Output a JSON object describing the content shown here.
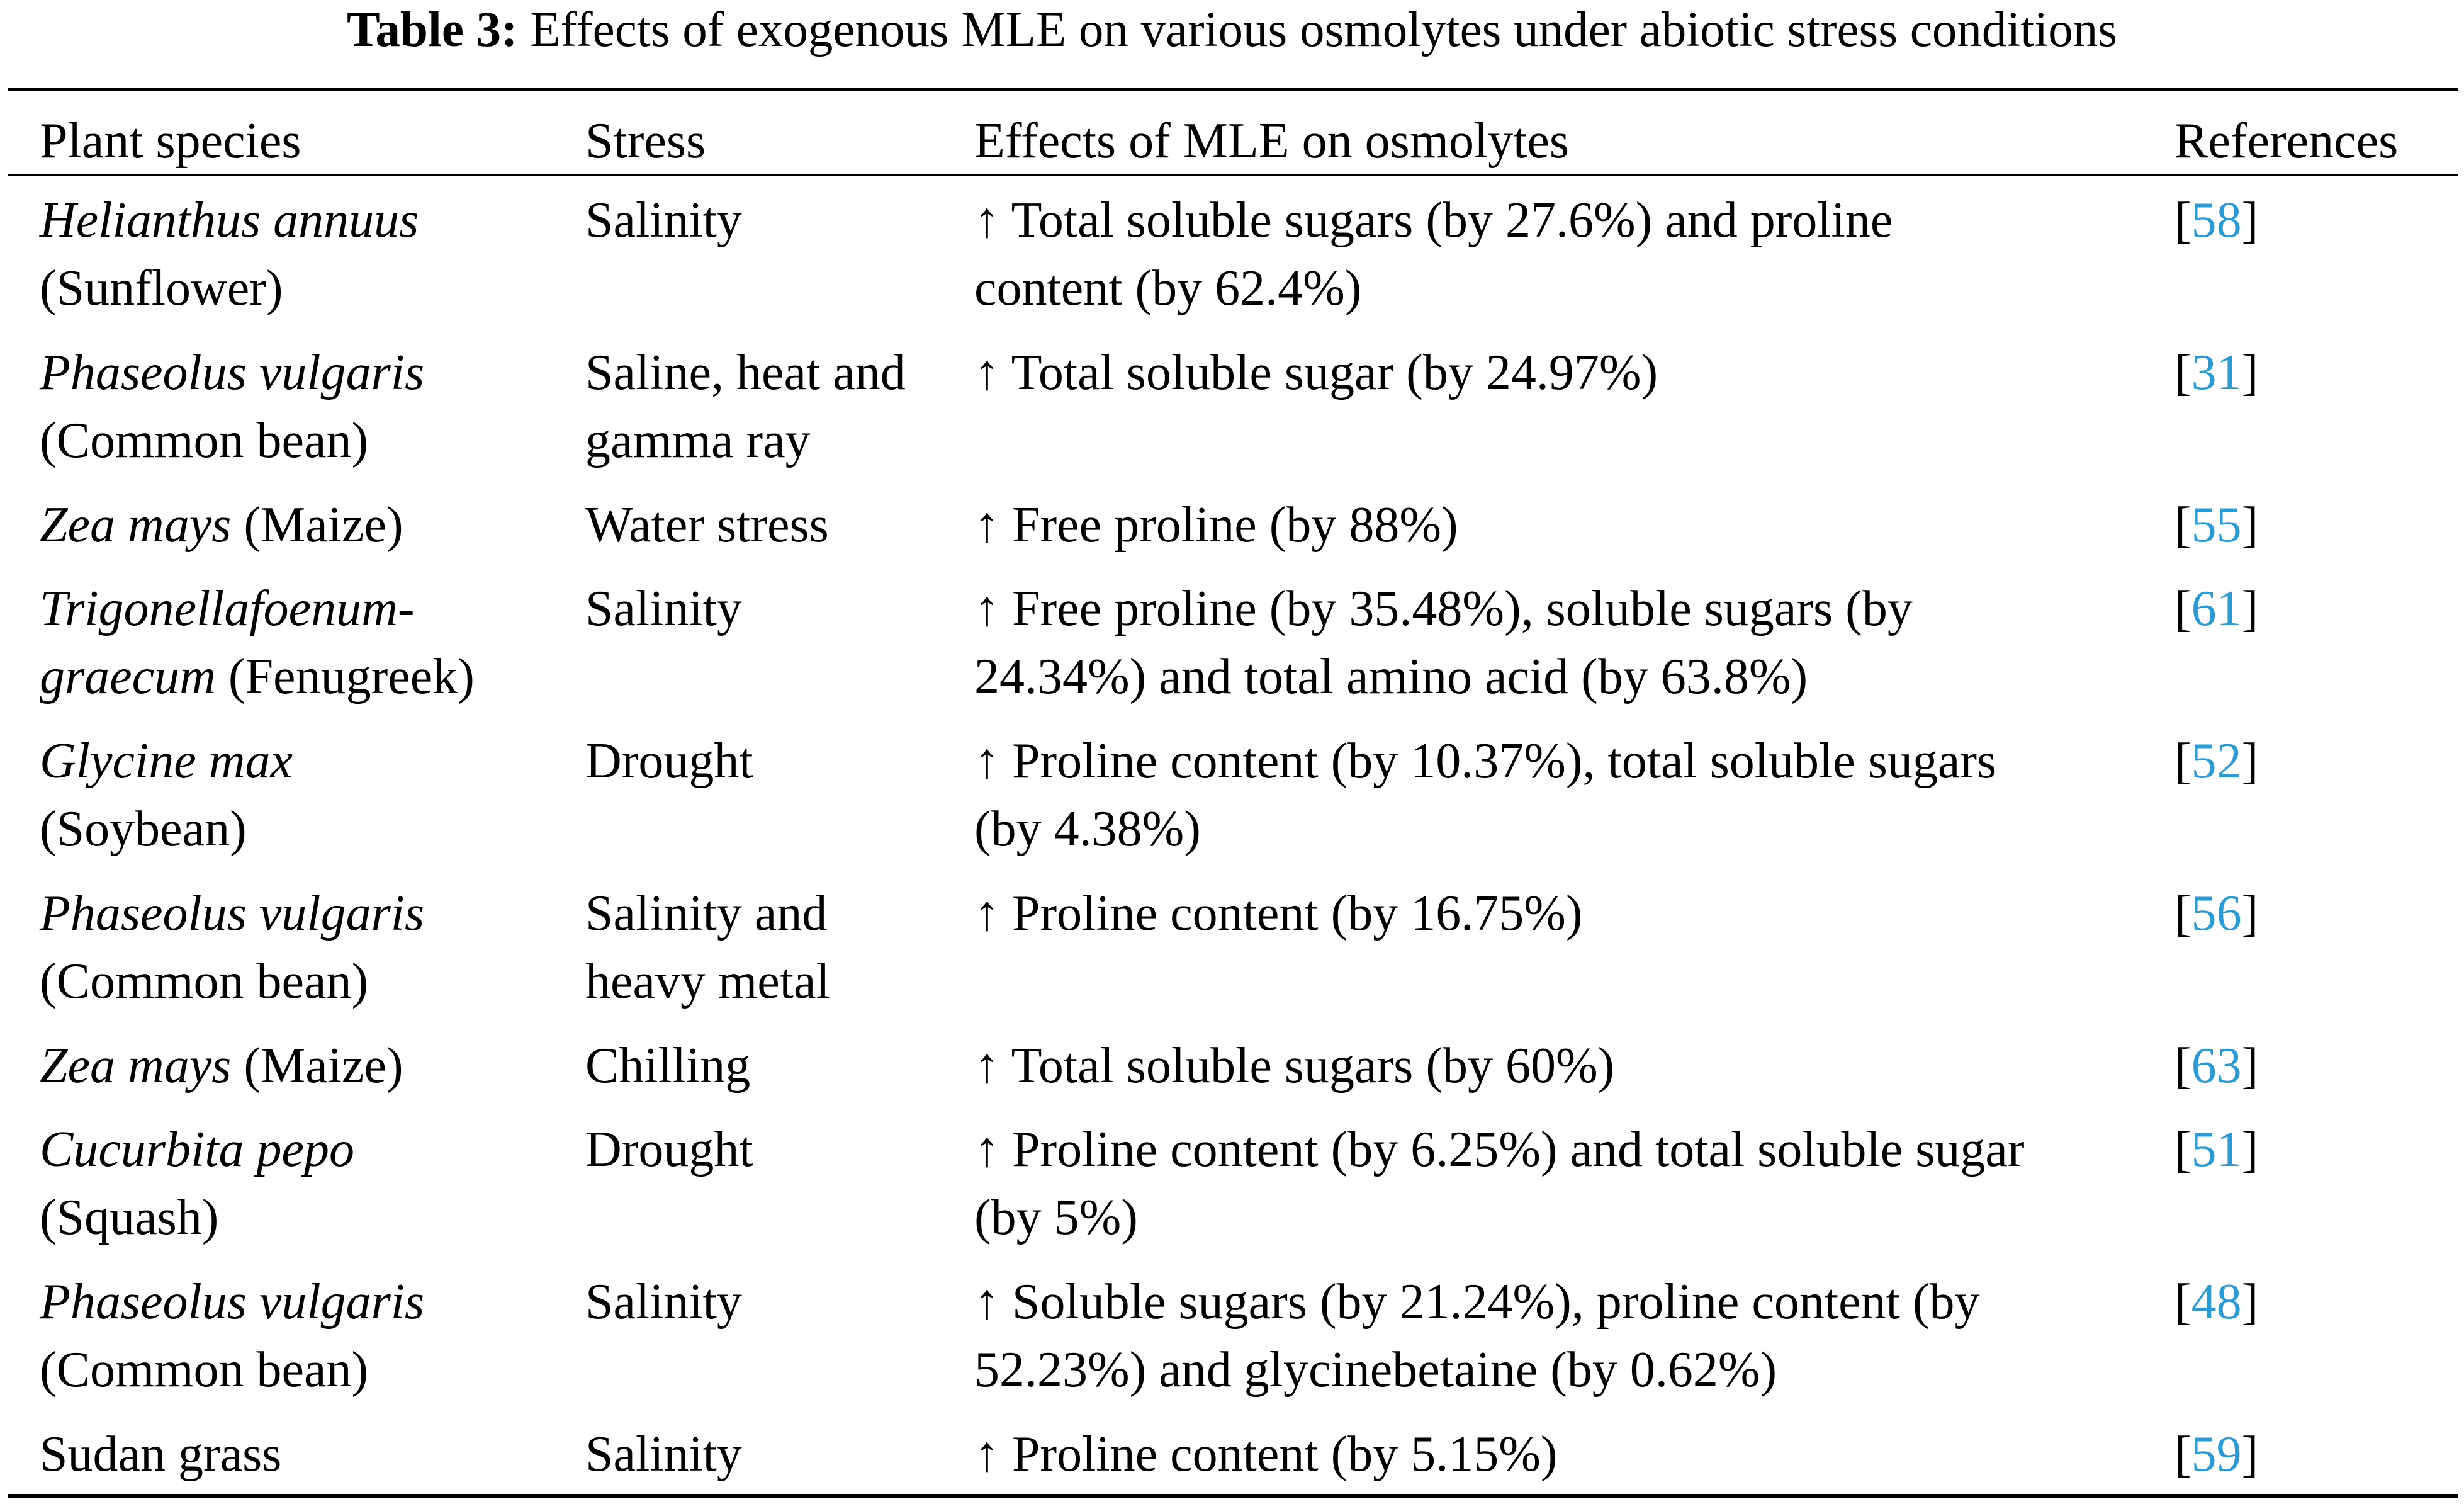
{
  "table": {
    "caption_label": "Table 3:",
    "caption_text": "Effects of exogenous MLE on various osmolytes under abiotic stress conditions",
    "headers": {
      "species": "Plant species",
      "stress": "Stress",
      "effects": "Effects of MLE on osmolytes",
      "references": "References"
    },
    "arrow_symbol": "↑",
    "rows": [
      {
        "species_line1_italic": "Helianthus annuus",
        "species_line2": "(Sunflower)",
        "stress_line1": "Salinity",
        "effect_line1": "Total soluble sugars (by 27.6%) and proline",
        "effect_line2": "content (by 62.4%)",
        "ref_open": "[",
        "ref": "58",
        "ref_close": "]"
      },
      {
        "species_line1_italic": "Phaseolus vulgaris",
        "species_line2": "(Common bean)",
        "stress_line1": "Saline, heat and",
        "stress_line2": "gamma ray",
        "effect_line1": "Total soluble sugar (by 24.97%)",
        "ref_open": "[",
        "ref": "31",
        "ref_close": "]"
      },
      {
        "species_line1_italic": "Zea mays",
        "species_line1_rest": " (Maize)",
        "stress_line1": "Water stress",
        "effect_line1": "Free proline (by 88%)",
        "ref_open": "[",
        "ref": "55",
        "ref_close": "]"
      },
      {
        "species_line1_italic": "Trigonellafoenum-",
        "species_line2_italic": "graecum",
        "species_line2_rest": " (Fenugreek)",
        "stress_line1": "Salinity",
        "effect_line1": "Free proline (by 35.48%), soluble sugars (by",
        "effect_line2": "24.34%) and total amino acid (by 63.8%)",
        "ref_open": "[",
        "ref": "61",
        "ref_close": "]"
      },
      {
        "species_line1_italic": "Glycine max",
        "species_line2": "(Soybean)",
        "stress_line1": "Drought",
        "effect_line1": "Proline content (by 10.37%), total soluble sugars",
        "effect_line2": "(by 4.38%)",
        "ref_open": "[",
        "ref": "52",
        "ref_close": "]"
      },
      {
        "species_line1_italic": "Phaseolus vulgaris",
        "species_line2": "(Common bean)",
        "stress_line1": "Salinity and",
        "stress_line2": "heavy metal",
        "effect_line1": "Proline content (by 16.75%)",
        "ref_open": "[",
        "ref": "56",
        "ref_close": "]"
      },
      {
        "species_line1_italic": "Zea mays",
        "species_line1_rest": " (Maize)",
        "stress_line1": "Chilling",
        "effect_line1": "Total soluble sugars (by 60%)",
        "ref_open": "[",
        "ref": "63",
        "ref_close": "]"
      },
      {
        "species_line1_italic": "Cucurbita pepo",
        "species_line2": "(Squash)",
        "stress_line1": "Drought",
        "effect_line1": "Proline content (by 6.25%) and total soluble sugar",
        "effect_line2": "(by 5%)",
        "ref_open": "[",
        "ref": "51",
        "ref_close": "]"
      },
      {
        "species_line1_italic": "Phaseolus vulgaris",
        "species_line2": "(Common bean)",
        "stress_line1": "Salinity",
        "effect_line1": "Soluble sugars (by 21.24%), proline content (by",
        "effect_line2": "52.23%) and glycinebetaine (by 0.62%)",
        "ref_open": "[",
        "ref": "48",
        "ref_close": "]"
      },
      {
        "species_line1": "Sudan grass",
        "stress_line1": "Salinity",
        "effect_line1": "Proline content (by 5.15%)",
        "ref_open": "[",
        "ref": "59",
        "ref_close": "]"
      }
    ]
  },
  "colors": {
    "text": "#000000",
    "reference_link": "#2b9bd6",
    "background": "#ffffff"
  }
}
